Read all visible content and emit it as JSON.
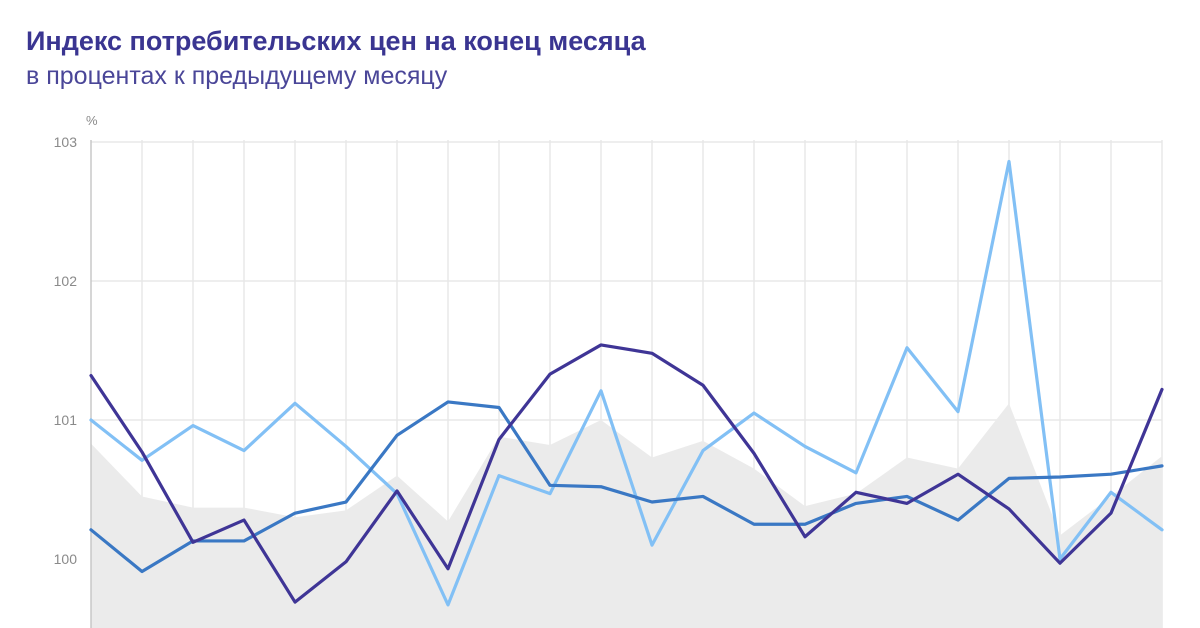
{
  "title": "Индекс потребительских цен на конец месяца",
  "subtitle": "в процентах к предыдущему месяцу",
  "chart_data": {
    "type": "line",
    "ylabel": "%",
    "ylim": [
      99.5,
      103
    ],
    "yticks": [
      "100",
      "101",
      "102",
      "103"
    ],
    "grid": true,
    "legend": "none",
    "x": [
      1,
      2,
      3,
      4,
      5,
      6,
      7,
      8,
      9,
      10,
      11,
      12,
      13,
      14,
      15,
      16,
      17,
      18,
      19,
      20,
      21,
      22
    ],
    "area": {
      "color": "#ebebeb",
      "values": [
        100.83,
        100.45,
        100.37,
        100.37,
        100.3,
        100.35,
        100.6,
        100.27,
        100.88,
        100.82,
        101.0,
        100.73,
        100.85,
        100.65,
        100.38,
        100.47,
        100.73,
        100.65,
        101.12,
        100.17,
        100.45,
        100.74
      ]
    },
    "series": [
      {
        "color": "#82c0f5",
        "values": [
          101.0,
          100.71,
          100.96,
          100.78,
          101.12,
          100.81,
          100.47,
          99.67,
          100.6,
          100.47,
          101.21,
          100.1,
          100.78,
          101.05,
          100.81,
          100.62,
          101.52,
          101.06,
          102.86,
          100.0,
          100.48,
          100.21
        ]
      },
      {
        "color": "#3a78c4",
        "values": [
          100.21,
          99.91,
          100.13,
          100.13,
          100.33,
          100.41,
          100.89,
          101.13,
          101.09,
          100.53,
          100.52,
          100.41,
          100.45,
          100.25,
          100.25,
          100.4,
          100.45,
          100.28,
          100.58,
          100.59,
          100.61,
          100.67
        ]
      },
      {
        "color": "#3f3596",
        "values": [
          101.32,
          100.77,
          100.12,
          100.28,
          99.69,
          99.98,
          100.49,
          99.93,
          100.86,
          101.33,
          101.54,
          101.48,
          101.25,
          100.76,
          100.16,
          100.48,
          100.4,
          100.61,
          100.36,
          99.97,
          100.33,
          101.22
        ]
      }
    ]
  }
}
